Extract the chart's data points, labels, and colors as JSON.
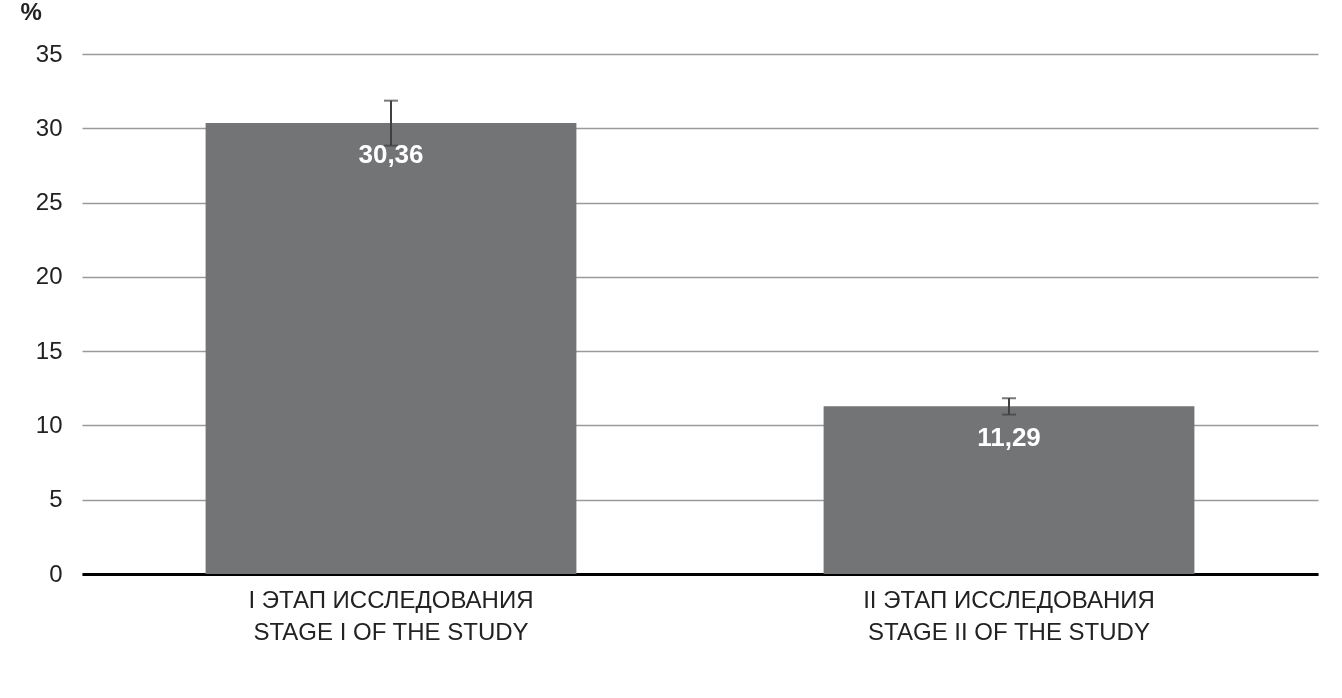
{
  "chart_data": {
    "type": "bar",
    "ylabel": "%",
    "categories": [
      "I ЭТАП ИССЛЕДОВАНИЯ\nSTAGE I OF THE STUDY",
      "II ЭТАП ИССЛЕДОВАНИЯ\nSTAGE II OF THE STUDY"
    ],
    "values": [
      30.36,
      11.29
    ],
    "value_labels": [
      "30,36",
      "11,29"
    ],
    "color": "#737476",
    "errors": [
      [
        28.83,
        31.86
      ],
      [
        10.73,
        11.83
      ]
    ],
    "ylim": [
      0,
      35
    ],
    "yticks": [
      0,
      5,
      10,
      15,
      20,
      25,
      30,
      35
    ],
    "grid": "y"
  }
}
